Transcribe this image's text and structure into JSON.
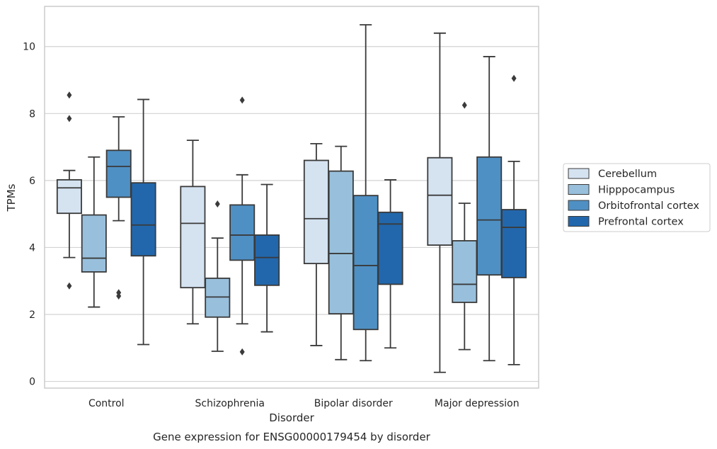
{
  "chart_data": {
    "type": "box",
    "caption": "Gene expression for ENSG00000179454 by disorder",
    "xlabel": "Disorder",
    "ylabel": "TPMs",
    "ylim": [
      -0.2,
      11.2
    ],
    "yticks": [
      0,
      2,
      4,
      6,
      8,
      10
    ],
    "grid": "horizontal",
    "legend_position": "right",
    "categories": [
      "Control",
      "Schizophrenia",
      "Bipolar disorder",
      "Major depression"
    ],
    "series": [
      {
        "name": "Cerebellum",
        "color": "#d5e3f1",
        "boxes": [
          {
            "whislo": 3.7,
            "q1": 5.02,
            "med": 5.78,
            "q3": 6.02,
            "whishi": 6.3,
            "fliers": [
              8.55,
              7.85,
              2.85
            ]
          },
          {
            "whislo": 1.72,
            "q1": 2.8,
            "med": 4.72,
            "q3": 5.82,
            "whishi": 7.2,
            "fliers": []
          },
          {
            "whislo": 1.07,
            "q1": 3.52,
            "med": 4.86,
            "q3": 6.6,
            "whishi": 7.1,
            "fliers": []
          },
          {
            "whislo": 0.27,
            "q1": 4.07,
            "med": 5.56,
            "q3": 6.68,
            "whishi": 10.4,
            "fliers": []
          }
        ]
      },
      {
        "name": "Hipppocampus",
        "color": "#98c0dc",
        "boxes": [
          {
            "whislo": 2.22,
            "q1": 3.27,
            "med": 3.68,
            "q3": 4.97,
            "whishi": 6.7,
            "fliers": []
          },
          {
            "whislo": 0.9,
            "q1": 1.92,
            "med": 2.52,
            "q3": 3.08,
            "whishi": 4.28,
            "fliers": [
              5.3
            ]
          },
          {
            "whislo": 0.65,
            "q1": 2.02,
            "med": 3.82,
            "q3": 6.28,
            "whishi": 7.02,
            "fliers": []
          },
          {
            "whislo": 0.95,
            "q1": 2.36,
            "med": 2.9,
            "q3": 4.2,
            "whishi": 5.32,
            "fliers": [
              8.25
            ]
          }
        ]
      },
      {
        "name": "Orbitofrontal cortex",
        "color": "#4f90c4",
        "boxes": [
          {
            "whislo": 4.8,
            "q1": 5.5,
            "med": 6.42,
            "q3": 6.9,
            "whishi": 7.9,
            "fliers": [
              2.65,
              2.55
            ]
          },
          {
            "whislo": 1.72,
            "q1": 3.62,
            "med": 4.37,
            "q3": 5.27,
            "whishi": 6.17,
            "fliers": [
              8.4,
              0.88
            ]
          },
          {
            "whislo": 0.62,
            "q1": 1.55,
            "med": 3.46,
            "q3": 5.55,
            "whishi": 10.65,
            "fliers": []
          },
          {
            "whislo": 0.62,
            "q1": 3.18,
            "med": 4.82,
            "q3": 6.7,
            "whishi": 9.7,
            "fliers": []
          }
        ]
      },
      {
        "name": "Prefrontal cortex",
        "color": "#2267ac",
        "boxes": [
          {
            "whislo": 1.1,
            "q1": 3.75,
            "med": 4.67,
            "q3": 5.93,
            "whishi": 8.42,
            "fliers": []
          },
          {
            "whislo": 1.48,
            "q1": 2.87,
            "med": 3.7,
            "q3": 4.37,
            "whishi": 5.88,
            "fliers": []
          },
          {
            "whislo": 1.0,
            "q1": 2.9,
            "med": 4.7,
            "q3": 5.05,
            "whishi": 6.02,
            "fliers": []
          },
          {
            "whislo": 0.5,
            "q1": 3.1,
            "med": 4.6,
            "q3": 5.13,
            "whishi": 6.57,
            "fliers": [
              9.05
            ]
          }
        ]
      }
    ]
  }
}
